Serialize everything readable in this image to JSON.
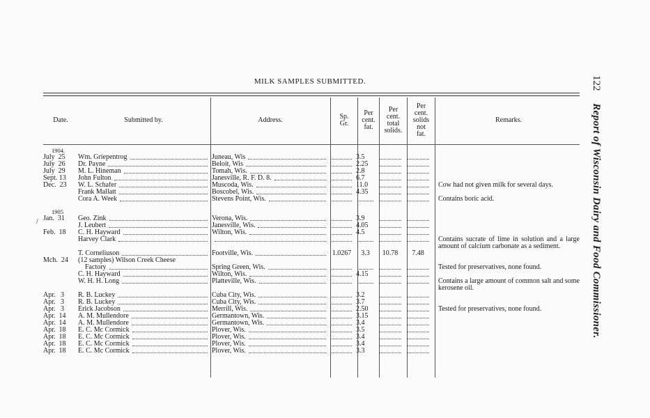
{
  "page_title": "MILK SAMPLES SUBMITTED.",
  "running_head": {
    "page_number": "122",
    "text": "Report of Wisconsin Dairy and Food Commissioner."
  },
  "columns": {
    "date": "Date.",
    "submitted_by": "Submitted by.",
    "address": "Address.",
    "sp_gr": "Sp. Gr.",
    "fat": "Per cent. fat.",
    "total_solids": "Per cent. total solids.",
    "solids_not_fat": "Per cent. solids not fat.",
    "remarks": "Remarks."
  },
  "groups": [
    {
      "year": "1904.",
      "rows": [
        {
          "date": "July 25",
          "name": "Wm. Griepentrog",
          "address": "Juneau, Wis",
          "sp_gr": "",
          "fat": "3.5",
          "total_solids": "",
          "solids_not_fat": "",
          "remarks": ""
        },
        {
          "date": "July 26",
          "name": "Dr. Payne",
          "address": "Beloit, Wis",
          "sp_gr": "",
          "fat": "2.25",
          "total_solids": "",
          "solids_not_fat": "",
          "remarks": ""
        },
        {
          "date": "July 29",
          "name": "M. L. Hineman",
          "address": "Tomah, Wis.",
          "sp_gr": "",
          "fat": "2.8",
          "total_solids": "",
          "solids_not_fat": "",
          "remarks": ""
        },
        {
          "date": "Sept. 13",
          "name": "John Fulton",
          "address": "Janesville, R. F. D. 8.",
          "sp_gr": "",
          "fat": "6.7",
          "total_solids": "",
          "solids_not_fat": "",
          "remarks": ""
        },
        {
          "date": "Dec. 23",
          "name": "W. L. Schafer",
          "address": "Muscoda, Wis.",
          "sp_gr": "",
          "fat": "11.0",
          "total_solids": "",
          "solids_not_fat": "",
          "remarks": "Cow had not given milk for several days."
        },
        {
          "date": "",
          "name": "Frank Mallatt",
          "address": "Boscobel, Wis.",
          "sp_gr": "",
          "fat": "4.35",
          "total_solids": "",
          "solids_not_fat": "",
          "remarks": ""
        },
        {
          "date": "",
          "name": "Cora A. Week",
          "address": "Stevens Point, Wis.",
          "sp_gr": "",
          "fat": "",
          "total_solids": "",
          "solids_not_fat": "",
          "remarks": "Contains boric acid."
        }
      ]
    },
    {
      "year": "1905",
      "rows": [
        {
          "date": "Jan. 31",
          "name": "Geo. Zink",
          "address": "Verona, Wis.",
          "sp_gr": "",
          "fat": "3.9",
          "total_solids": "",
          "solids_not_fat": "",
          "remarks": ""
        },
        {
          "date": "",
          "name": "J. Leubert",
          "address": "Janesville, Wis.",
          "sp_gr": "",
          "fat": "4.05",
          "total_solids": "",
          "solids_not_fat": "",
          "remarks": ""
        },
        {
          "date": "Feb. 18",
          "name": "C. H. Hayward",
          "address": "Wilton, Wis.",
          "sp_gr": "",
          "fat": "4.5",
          "total_solids": "",
          "solids_not_fat": "",
          "remarks": ""
        },
        {
          "date": "",
          "name": "Harvey Clark",
          "address": "",
          "sp_gr": "",
          "fat": "",
          "total_solids": "",
          "solids_not_fat": "",
          "remarks": "Contains sucrate of lime in solution and a large amount of calcium carbonate as a sediment."
        },
        {
          "date": "",
          "name": "T. Corneliuson",
          "address": "Footville, Wis.",
          "sp_gr": "1.0267",
          "fat": "3.3",
          "total_solids": "10.78",
          "solids_not_fat": "7.48",
          "remarks": ""
        },
        {
          "date": "Mch. 24",
          "name": "(12 samples) Wilson Creek Cheese",
          "address": "",
          "sp_gr": "",
          "fat": "",
          "total_solids": "",
          "solids_not_fat": "",
          "remarks": ""
        },
        {
          "date": "",
          "name": "Factory",
          "address": "Spring Green, Wis.",
          "sp_gr": "",
          "fat": "",
          "total_solids": "",
          "solids_not_fat": "",
          "remarks": "Tested for preservatives, none found."
        },
        {
          "date": "",
          "name": "C. H. Hayward",
          "address": "Wilton, Wis.",
          "sp_gr": "",
          "fat": "4.15",
          "total_solids": "",
          "solids_not_fat": "",
          "remarks": ""
        },
        {
          "date": "",
          "name": "W. H. H. Long",
          "address": "Platteville, Wis.",
          "sp_gr": "",
          "fat": "",
          "total_solids": "",
          "solids_not_fat": "",
          "remarks": "Contains a large amount of common salt and some kerosene oil."
        },
        {
          "date": "Apr. 3",
          "name": "R. B. Luckey",
          "address": "Cuba City, Wis.",
          "sp_gr": "",
          "fat": "3.2",
          "total_solids": "",
          "solids_not_fat": "",
          "remarks": ""
        },
        {
          "date": "Apr. 3",
          "name": "R. B. Luckey",
          "address": "Cuba City, Wis.",
          "sp_gr": "",
          "fat": "3.7",
          "total_solids": "",
          "solids_not_fat": "",
          "remarks": ""
        },
        {
          "date": "Apr. 3",
          "name": "Erick Jacobson",
          "address": "Merrill, Wis.",
          "sp_gr": "",
          "fat": "2.50",
          "total_solids": "",
          "solids_not_fat": "",
          "remarks": "Tested for preservatives, none found."
        },
        {
          "date": "Apr. 14",
          "name": "A. M. Mullendore",
          "address": "Germantown, Wis.",
          "sp_gr": "",
          "fat": "3.15",
          "total_solids": "",
          "solids_not_fat": "",
          "remarks": ""
        },
        {
          "date": "Apr. 14",
          "name": "A. M. Mullendore",
          "address": "Germantown, Wis.",
          "sp_gr": "",
          "fat": "3.4",
          "total_solids": "",
          "solids_not_fat": "",
          "remarks": ""
        },
        {
          "date": "Apr. 18",
          "name": "E. C. Mc Cormick",
          "address": "Plover, Wis.",
          "sp_gr": "",
          "fat": "3.5",
          "total_solids": "",
          "solids_not_fat": "",
          "remarks": ""
        },
        {
          "date": "Apr. 18",
          "name": "E. C. Mc Cormick",
          "address": "Plover, Wis.",
          "sp_gr": "",
          "fat": "3.4",
          "total_solids": "",
          "solids_not_fat": "",
          "remarks": ""
        },
        {
          "date": "Apr. 18",
          "name": "E. C. Mc Cormick",
          "address": "Plover, Wis.",
          "sp_gr": "",
          "fat": "3.4",
          "total_solids": "",
          "solids_not_fat": "",
          "remarks": ""
        },
        {
          "date": "Apr. 18",
          "name": "E. C. Mc Cormick",
          "address": "Plover, Wis.",
          "sp_gr": "",
          "fat": "3.3",
          "total_solids": "",
          "solids_not_fat": "",
          "remarks": ""
        }
      ]
    }
  ]
}
